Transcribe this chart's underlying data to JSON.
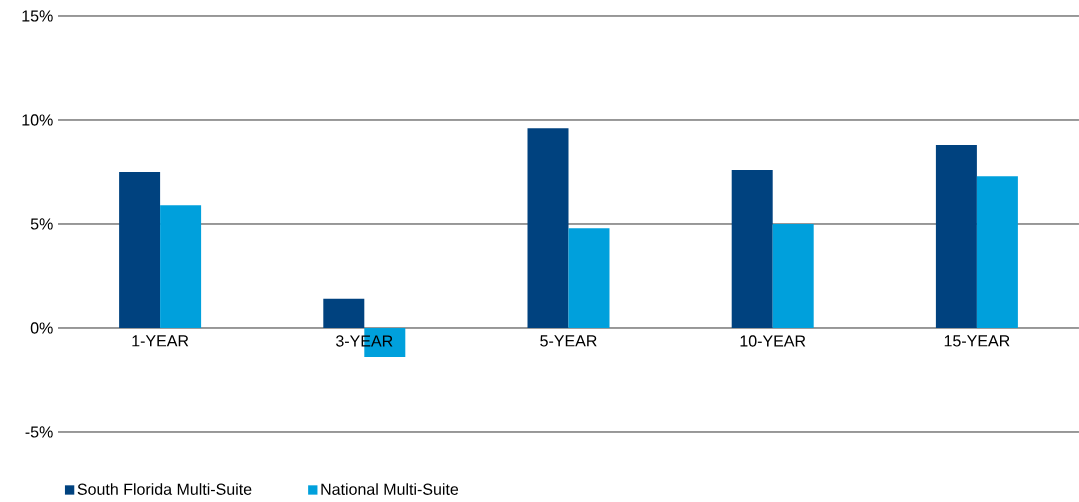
{
  "chart_data": {
    "type": "bar",
    "categories": [
      "1-YEAR",
      "3-YEAR",
      "5-YEAR",
      "10-YEAR",
      "15-YEAR"
    ],
    "series": [
      {
        "name": "South Florida Multi-Suite",
        "color": "#00427f",
        "values": [
          7.5,
          1.4,
          9.6,
          7.6,
          8.8
        ]
      },
      {
        "name": "National Multi-Suite",
        "color": "#00a0dc",
        "values": [
          5.9,
          -1.4,
          4.8,
          5.0,
          7.3
        ]
      }
    ],
    "ylim": [
      -5,
      15
    ],
    "yticks": [
      {
        "value": -5,
        "label": "-5%"
      },
      {
        "value": 0,
        "label": "0%"
      },
      {
        "value": 5,
        "label": "5%"
      },
      {
        "value": 10,
        "label": "10%"
      },
      {
        "value": 15,
        "label": "15%"
      }
    ],
    "grid": "y",
    "legend": "bottom left"
  }
}
